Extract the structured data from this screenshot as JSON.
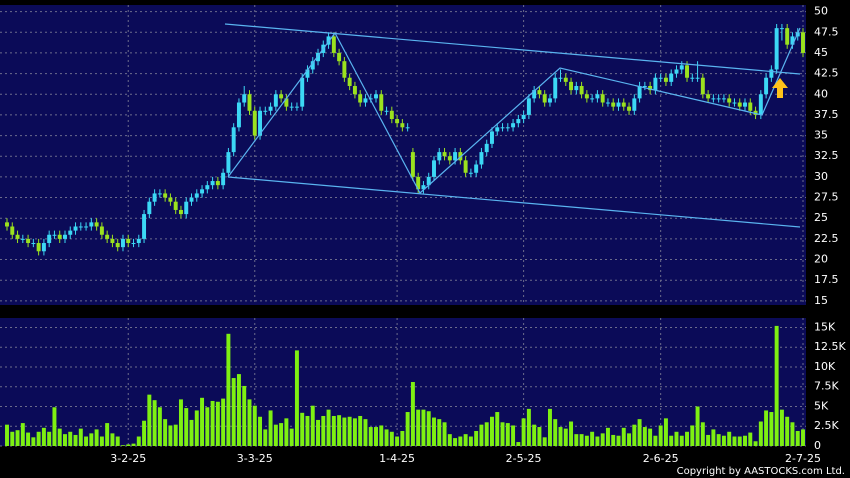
{
  "chart_data": {
    "type": "candlestick",
    "up_color": "#3cd8f5",
    "down_color": "#9be21e",
    "volume_color": "#7ef012",
    "candles": [
      [
        24.5,
        25,
        23.5,
        24
      ],
      [
        24,
        24.5,
        22.5,
        23
      ],
      [
        23,
        23.5,
        22,
        22.5
      ],
      [
        22.5,
        23,
        22,
        22.5
      ],
      [
        22.5,
        23,
        21.5,
        22
      ],
      [
        22,
        22.5,
        21.5,
        22
      ],
      [
        22,
        22.5,
        20.5,
        21
      ],
      [
        21,
        22.5,
        20.5,
        22
      ],
      [
        22,
        23.5,
        21.5,
        23
      ],
      [
        23,
        23.5,
        22.5,
        23
      ],
      [
        23,
        23.5,
        22,
        22.5
      ],
      [
        22.5,
        23.5,
        22,
        23
      ],
      [
        23,
        24,
        22.5,
        23.5
      ],
      [
        23.5,
        24.5,
        23,
        24
      ],
      [
        24,
        24.5,
        23.5,
        24
      ],
      [
        24,
        24.5,
        23.5,
        24
      ],
      [
        24,
        25,
        23.5,
        24.5
      ],
      [
        24.5,
        25,
        23.5,
        24
      ],
      [
        24,
        24.5,
        22.5,
        23
      ],
      [
        23,
        23.5,
        22,
        22.5
      ],
      [
        22.5,
        23,
        21.5,
        22
      ],
      [
        22,
        22.5,
        21,
        21.5
      ],
      [
        21.5,
        23,
        21,
        22.5
      ],
      [
        22.5,
        23,
        21.5,
        22
      ],
      [
        22,
        22.5,
        21.5,
        22
      ],
      [
        22,
        23,
        21.5,
        22.5
      ],
      [
        22.5,
        26,
        22,
        25.5
      ],
      [
        25.5,
        27.5,
        25,
        27
      ],
      [
        27,
        28.5,
        26.5,
        28
      ],
      [
        28,
        28.5,
        27.5,
        28
      ],
      [
        28,
        28.5,
        27,
        27.5
      ],
      [
        27.5,
        28,
        26.5,
        27
      ],
      [
        27,
        27.5,
        25.5,
        26
      ],
      [
        26,
        26.5,
        25,
        25.5
      ],
      [
        25.5,
        27.5,
        25,
        27
      ],
      [
        27,
        28,
        26.5,
        27.5
      ],
      [
        27.5,
        28.5,
        27,
        28
      ],
      [
        28,
        29,
        27.5,
        28.5
      ],
      [
        28.5,
        29.5,
        28,
        29
      ],
      [
        29,
        30,
        28.5,
        29.5
      ],
      [
        29.5,
        30,
        28.5,
        29
      ],
      [
        29,
        31,
        28.5,
        30.5
      ],
      [
        30.5,
        33.5,
        30,
        33
      ],
      [
        33,
        36.5,
        32.5,
        36
      ],
      [
        36,
        39.5,
        35.5,
        39
      ],
      [
        39,
        41,
        38.5,
        40
      ],
      [
        40,
        40.5,
        37.5,
        38
      ],
      [
        38,
        38.5,
        34.5,
        35
      ],
      [
        35,
        38.5,
        34.5,
        38
      ],
      [
        38,
        38.5,
        37.5,
        38
      ],
      [
        38,
        39,
        37.5,
        38.5
      ],
      [
        38.5,
        40.5,
        38,
        40
      ],
      [
        40,
        40.5,
        39,
        39.5
      ],
      [
        39.5,
        40,
        38,
        38.5
      ],
      [
        38.5,
        39,
        38,
        38.5
      ],
      [
        38.5,
        39,
        38,
        38.5
      ],
      [
        38.5,
        42.5,
        38,
        42
      ],
      [
        42,
        43.5,
        41.5,
        43
      ],
      [
        43,
        44.5,
        42.5,
        44
      ],
      [
        44,
        45.5,
        43.5,
        45
      ],
      [
        45,
        46.5,
        44.5,
        46
      ],
      [
        46,
        47.5,
        45.5,
        47
      ],
      [
        47,
        47.5,
        44.5,
        45
      ],
      [
        45,
        45.5,
        43.5,
        44
      ],
      [
        44,
        44.5,
        41.5,
        42
      ],
      [
        42,
        42.5,
        40.5,
        41
      ],
      [
        41,
        41.5,
        39.5,
        40
      ],
      [
        40,
        40.5,
        38.5,
        39
      ],
      [
        39,
        40,
        38.5,
        39.5
      ],
      [
        39.5,
        40,
        39,
        39.5
      ],
      [
        39.5,
        40.5,
        39,
        40
      ],
      [
        40,
        40.5,
        37.5,
        38
      ],
      [
        38,
        38.5,
        37.5,
        38
      ],
      [
        38,
        38.5,
        36.5,
        37
      ],
      [
        37,
        37.5,
        36,
        36.5
      ],
      [
        36.5,
        37,
        35.5,
        36
      ],
      [
        36,
        36.5,
        35.5,
        36
      ],
      [
        33,
        33.5,
        29.5,
        30
      ],
      [
        30,
        30.5,
        28,
        28.5
      ],
      [
        28.5,
        29.5,
        28,
        29
      ],
      [
        29,
        30.5,
        28.5,
        30
      ],
      [
        30,
        32.5,
        29.5,
        32
      ],
      [
        32,
        33.5,
        31.5,
        33
      ],
      [
        33,
        33.5,
        32,
        32.5
      ],
      [
        32.5,
        33,
        31.5,
        32
      ],
      [
        32,
        33.5,
        31.5,
        33
      ],
      [
        33,
        33.5,
        31.5,
        32
      ],
      [
        32,
        32.5,
        30,
        30.5
      ],
      [
        30.5,
        31,
        30,
        30.5
      ],
      [
        30.5,
        32,
        30,
        31.5
      ],
      [
        31.5,
        33.5,
        31,
        33
      ],
      [
        33,
        34.5,
        32.5,
        34
      ],
      [
        34,
        36,
        33.5,
        35.5
      ],
      [
        35.5,
        36.5,
        35,
        36
      ],
      [
        36,
        36.5,
        35.5,
        36
      ],
      [
        36,
        36.5,
        35.5,
        36
      ],
      [
        36,
        37,
        35.5,
        36.5
      ],
      [
        36.5,
        37.5,
        36,
        37
      ],
      [
        37,
        38,
        36.5,
        37.5
      ],
      [
        37.5,
        40,
        37,
        39.5
      ],
      [
        39.5,
        41,
        39,
        40.5
      ],
      [
        40.5,
        41,
        39.5,
        40
      ],
      [
        40,
        40.5,
        38.5,
        39
      ],
      [
        39,
        40,
        38.5,
        39.5
      ],
      [
        39.5,
        42.5,
        39,
        42
      ],
      [
        42,
        43,
        41.5,
        42
      ],
      [
        42,
        42.5,
        41,
        41.5
      ],
      [
        41.5,
        42,
        40,
        40.5
      ],
      [
        40.5,
        41.5,
        40,
        41
      ],
      [
        41,
        41.5,
        39.5,
        40
      ],
      [
        40,
        40.5,
        39,
        39.5
      ],
      [
        39.5,
        40,
        39,
        39.5
      ],
      [
        39.5,
        40.5,
        39,
        40
      ],
      [
        40,
        40.5,
        38.5,
        39
      ],
      [
        39,
        39.5,
        38.5,
        39
      ],
      [
        39,
        39.5,
        38,
        38.5
      ],
      [
        38.5,
        39.5,
        38,
        39
      ],
      [
        39,
        39.5,
        38,
        38.5
      ],
      [
        38.5,
        39,
        37.5,
        38
      ],
      [
        38,
        40,
        37.5,
        39.5
      ],
      [
        39.5,
        41.5,
        39,
        41
      ],
      [
        41,
        41.5,
        40.5,
        41
      ],
      [
        41,
        41.5,
        40,
        40.5
      ],
      [
        40.5,
        42.5,
        40,
        42
      ],
      [
        42,
        42.5,
        41.5,
        42
      ],
      [
        42,
        42.5,
        41,
        41.5
      ],
      [
        41.5,
        43,
        41,
        42.5
      ],
      [
        42.5,
        43.5,
        42,
        43
      ],
      [
        43,
        44,
        42.5,
        43.5
      ],
      [
        43.5,
        44,
        41.5,
        42
      ],
      [
        42,
        42.5,
        41.5,
        42
      ],
      [
        42,
        44,
        41.5,
        42
      ],
      [
        42,
        42.5,
        39.5,
        40
      ],
      [
        40,
        40.5,
        39,
        39.5
      ],
      [
        39.5,
        40,
        39,
        39.5
      ],
      [
        39.5,
        40,
        39,
        39.5
      ],
      [
        39.5,
        40,
        39,
        39.5
      ],
      [
        39.5,
        40,
        38.5,
        39
      ],
      [
        39,
        39.5,
        38.5,
        39
      ],
      [
        39,
        39.5,
        38,
        38.5
      ],
      [
        38.5,
        39.5,
        38,
        39
      ],
      [
        39,
        39.5,
        37.5,
        38
      ],
      [
        38,
        38.5,
        37,
        37.5
      ],
      [
        37.5,
        40.5,
        37,
        40
      ],
      [
        40,
        42.5,
        39.5,
        42
      ],
      [
        42,
        43.5,
        41.5,
        43
      ],
      [
        43,
        48.5,
        42.5,
        48
      ],
      [
        48,
        48.5,
        46.5,
        48
      ],
      [
        48,
        48.5,
        45.5,
        46
      ],
      [
        46,
        47.5,
        45.5,
        47
      ],
      [
        47,
        48,
        46.5,
        47.5
      ],
      [
        47.5,
        48,
        44.5,
        45
      ]
    ],
    "volume": [
      2700,
      1800,
      2000,
      2900,
      1700,
      1100,
      1800,
      2300,
      1800,
      4900,
      2200,
      1500,
      1800,
      1400,
      2200,
      1200,
      1600,
      2100,
      1200,
      2900,
      1600,
      1200,
      100,
      200,
      300,
      1200,
      3200,
      6500,
      5800,
      4900,
      3400,
      2600,
      2700,
      5900,
      4800,
      3300,
      4500,
      6100,
      4900,
      5700,
      5600,
      6000,
      14200,
      8600,
      9100,
      7600,
      5900,
      5100,
      3700,
      2100,
      4500,
      2700,
      2900,
      3500,
      2200,
      12100,
      4200,
      3800,
      5100,
      3300,
      3800,
      4600,
      3800,
      3900,
      3600,
      3700,
      3500,
      3800,
      3400,
      2400,
      2400,
      2600,
      2100,
      1800,
      1200,
      1900,
      4300,
      8100,
      4600,
      4600,
      4400,
      3600,
      3400,
      3000,
      1500,
      1000,
      1200,
      1500,
      1200,
      1900,
      2700,
      3000,
      3700,
      4300,
      3000,
      2900,
      2600,
      500,
      3500,
      4700,
      2700,
      2400,
      1100,
      4700,
      3400,
      2400,
      2200,
      3100,
      1500,
      1500,
      1300,
      1800,
      1200,
      1600,
      2300,
      1400,
      1300,
      2300,
      1600,
      2700,
      3400,
      2400,
      2200,
      1300,
      2600,
      3500,
      1300,
      1800,
      1300,
      1800,
      2600,
      5000,
      3000,
      1400,
      2100,
      1500,
      1300,
      1800,
      1200,
      1200,
      1300,
      1700,
      600,
      3100,
      4500,
      4300,
      15200,
      4600,
      3700,
      3000,
      1900,
      2100
    ],
    "xticks": [
      {
        "value": 23,
        "label": "3-2-25"
      },
      {
        "value": 47,
        "label": "3-3-25"
      },
      {
        "value": 74,
        "label": "1-4-25"
      },
      {
        "value": 98,
        "label": "2-5-25"
      },
      {
        "value": 124,
        "label": "2-6-25"
      },
      {
        "value": 151,
        "label": "2-7-25"
      }
    ],
    "ylim": [
      14.5,
      50.8
    ],
    "yticks": [
      15,
      17.5,
      20,
      22.5,
      25,
      27.5,
      30,
      32.5,
      35,
      37.5,
      40,
      42.5,
      45,
      47.5,
      50
    ],
    "y2lim": [
      0,
      16200
    ],
    "y2ticks": [
      0,
      {
        "value": 2500,
        "label": "2.5K"
      },
      {
        "value": 5000,
        "label": "5K"
      },
      {
        "value": 7500,
        "label": "7.5K"
      },
      {
        "value": 10000,
        "label": "10K"
      },
      {
        "value": 12500,
        "label": "12.5K"
      },
      {
        "value": 15000,
        "label": "15K"
      }
    ],
    "grid": true,
    "copyright": "Copyright by AASTOCKS.com Ltd."
  }
}
